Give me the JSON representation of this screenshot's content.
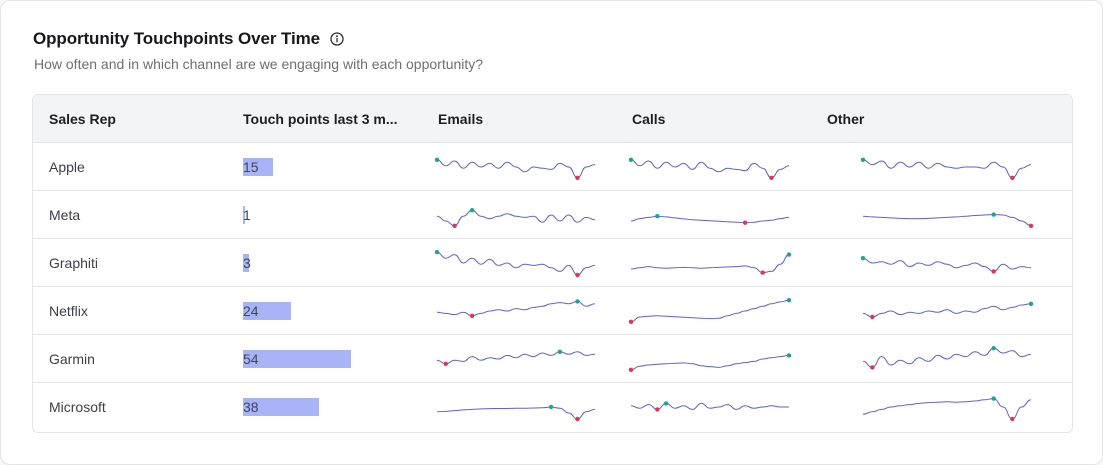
{
  "card": {
    "title": "Opportunity Touchpoints Over Time",
    "subtitle": "How often and in which channel are we engaging with each opportunity?"
  },
  "table": {
    "columns": [
      "Sales Rep",
      "Touch points last 3 m...",
      "Emails",
      "Calls",
      "Other"
    ],
    "bar_max": 54,
    "rows": [
      {
        "rep": "Apple",
        "touchpoints": 15,
        "emails": [
          0.2,
          0.45,
          0.25,
          0.55,
          0.3,
          0.5,
          0.35,
          0.55,
          0.3,
          0.5,
          0.7,
          0.5,
          0.55,
          0.6,
          0.35,
          0.5,
          0.95,
          0.5,
          0.4
        ],
        "calls": [
          0.2,
          0.45,
          0.25,
          0.55,
          0.3,
          0.5,
          0.35,
          0.6,
          0.3,
          0.55,
          0.7,
          0.55,
          0.6,
          0.65,
          0.35,
          0.55,
          0.95,
          0.6,
          0.45
        ],
        "other": [
          0.2,
          0.4,
          0.25,
          0.55,
          0.3,
          0.5,
          0.3,
          0.55,
          0.35,
          0.5,
          0.55,
          0.5,
          0.5,
          0.55,
          0.3,
          0.5,
          0.95,
          0.55,
          0.4
        ]
      },
      {
        "rep": "Meta",
        "touchpoints": 1,
        "emails": [
          0.55,
          0.75,
          0.95,
          0.55,
          0.3,
          0.55,
          0.65,
          0.55,
          0.45,
          0.55,
          0.6,
          0.55,
          0.8,
          0.5,
          0.75,
          0.5,
          0.8,
          0.6,
          0.7
        ],
        "calls": [
          0.75,
          0.65,
          0.6,
          0.55,
          0.58,
          0.62,
          0.66,
          0.7,
          0.72,
          0.74,
          0.76,
          0.78,
          0.8,
          0.82,
          0.8,
          0.75,
          0.72,
          0.65,
          0.6
        ],
        "other": [
          0.55,
          0.58,
          0.6,
          0.62,
          0.64,
          0.65,
          0.65,
          0.64,
          0.62,
          0.6,
          0.58,
          0.55,
          0.52,
          0.5,
          0.48,
          0.5,
          0.6,
          0.75,
          0.95
        ]
      },
      {
        "rep": "Graphiti",
        "touchpoints": 3,
        "emails": [
          0.05,
          0.3,
          0.15,
          0.5,
          0.3,
          0.55,
          0.35,
          0.6,
          0.5,
          0.7,
          0.55,
          0.6,
          0.55,
          0.7,
          0.85,
          0.6,
          1.0,
          0.7,
          0.6
        ],
        "calls": [
          0.75,
          0.7,
          0.65,
          0.7,
          0.72,
          0.7,
          0.68,
          0.7,
          0.72,
          0.7,
          0.68,
          0.66,
          0.65,
          0.62,
          0.7,
          0.9,
          0.85,
          0.55,
          0.15
        ],
        "other": [
          0.3,
          0.5,
          0.45,
          0.55,
          0.4,
          0.65,
          0.5,
          0.6,
          0.45,
          0.55,
          0.7,
          0.6,
          0.5,
          0.65,
          0.85,
          0.55,
          0.75,
          0.65,
          0.7
        ]
      },
      {
        "rep": "Netflix",
        "touchpoints": 24,
        "emails": [
          0.55,
          0.6,
          0.65,
          0.55,
          0.7,
          0.6,
          0.5,
          0.45,
          0.5,
          0.4,
          0.45,
          0.35,
          0.3,
          0.2,
          0.15,
          0.2,
          0.1,
          0.3,
          0.2
        ],
        "calls": [
          0.95,
          0.75,
          0.72,
          0.7,
          0.72,
          0.74,
          0.76,
          0.78,
          0.8,
          0.82,
          0.8,
          0.7,
          0.6,
          0.5,
          0.4,
          0.3,
          0.2,
          0.12,
          0.05
        ],
        "other": [
          0.6,
          0.75,
          0.6,
          0.5,
          0.65,
          0.55,
          0.6,
          0.5,
          0.55,
          0.45,
          0.6,
          0.5,
          0.55,
          0.4,
          0.3,
          0.45,
          0.35,
          0.25,
          0.2
        ]
      },
      {
        "rep": "Garmin",
        "touchpoints": 54,
        "emails": [
          0.55,
          0.7,
          0.55,
          0.6,
          0.4,
          0.55,
          0.45,
          0.5,
          0.35,
          0.45,
          0.3,
          0.4,
          0.25,
          0.35,
          0.2,
          0.3,
          0.2,
          0.35,
          0.3
        ],
        "calls": [
          0.95,
          0.8,
          0.75,
          0.72,
          0.7,
          0.68,
          0.66,
          0.7,
          0.78,
          0.82,
          0.85,
          0.78,
          0.7,
          0.65,
          0.6,
          0.5,
          0.45,
          0.4,
          0.35
        ],
        "other": [
          0.6,
          0.85,
          0.4,
          0.75,
          0.55,
          0.7,
          0.45,
          0.6,
          0.35,
          0.5,
          0.3,
          0.4,
          0.2,
          0.35,
          0.05,
          0.25,
          0.15,
          0.4,
          0.3
        ]
      },
      {
        "rep": "Microsoft",
        "touchpoints": 38,
        "emails": [
          0.7,
          0.68,
          0.65,
          0.62,
          0.6,
          0.58,
          0.57,
          0.56,
          0.56,
          0.55,
          0.55,
          0.54,
          0.53,
          0.5,
          0.55,
          0.75,
          1.0,
          0.7,
          0.6
        ],
        "calls": [
          0.45,
          0.55,
          0.4,
          0.6,
          0.35,
          0.55,
          0.45,
          0.6,
          0.35,
          0.55,
          0.5,
          0.4,
          0.6,
          0.45,
          0.55,
          0.5,
          0.45,
          0.5,
          0.5
        ],
        "other": [
          0.8,
          0.7,
          0.6,
          0.5,
          0.45,
          0.4,
          0.35,
          0.32,
          0.3,
          0.28,
          0.3,
          0.28,
          0.25,
          0.2,
          0.15,
          0.5,
          1.0,
          0.5,
          0.2
        ]
      }
    ]
  },
  "colors": {
    "line": "#5b5fe0",
    "high_dot": "#1aa58c",
    "low_dot": "#e03455",
    "bar": "#a9b4f6"
  }
}
